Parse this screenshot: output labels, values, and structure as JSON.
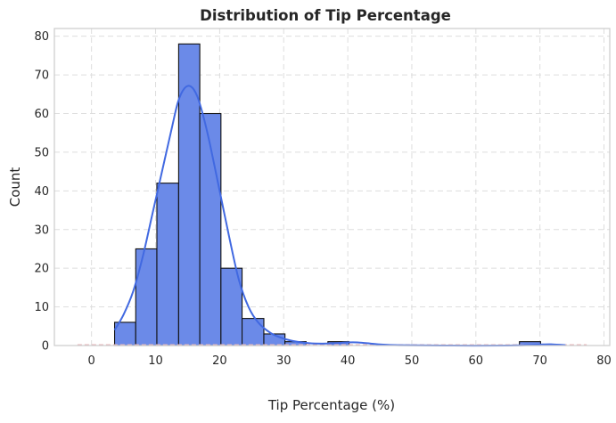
{
  "chart_data": {
    "type": "bar",
    "title": "Distribution of Tip Percentage",
    "xlabel": "Tip Percentage (%)",
    "ylabel": "Count",
    "xlim": [
      -5.8,
      80.9
    ],
    "ylim": [
      0,
      82
    ],
    "xticks": [
      0,
      10,
      20,
      30,
      40,
      50,
      60,
      70,
      80
    ],
    "yticks": [
      0,
      10,
      20,
      30,
      40,
      50,
      60,
      70,
      80
    ],
    "grid": true,
    "bin_edges": [
      3.6,
      6.9,
      10.2,
      13.6,
      16.9,
      20.2,
      23.5,
      26.9,
      30.2,
      33.5,
      36.9,
      40.2,
      43.5,
      46.8,
      50.2,
      53.5,
      56.8,
      60.1,
      63.5,
      66.8,
      70.1
    ],
    "counts": [
      6,
      25,
      42,
      78,
      60,
      20,
      7,
      3,
      1,
      0,
      1,
      0,
      0,
      0,
      0,
      0,
      0,
      0,
      0,
      1
    ],
    "kde": {
      "x": [
        3.6,
        5,
        6.5,
        8,
        9.5,
        11,
        12.5,
        13.5,
        14.5,
        15.5,
        16.5,
        17.5,
        18.5,
        20,
        21.5,
        23,
        24.5,
        26,
        28,
        30,
        32,
        34,
        36,
        38,
        40,
        41.5,
        43,
        45,
        48,
        55,
        65,
        70.5,
        72,
        74
      ],
      "y": [
        4,
        8,
        14,
        23,
        34,
        45,
        56,
        63,
        66.5,
        67,
        64.5,
        59,
        52,
        40,
        28,
        17,
        10,
        6,
        3.2,
        1.8,
        1.0,
        0.6,
        0.5,
        0.6,
        0.8,
        0.8,
        0.6,
        0.3,
        0.1,
        0,
        0,
        0.3,
        0.3,
        0.1
      ]
    },
    "baseline_range": [
      -2.2,
      77.3
    ],
    "colors": {
      "bar_fill": "#6b8ae8",
      "bar_edge": "#111111",
      "kde_line": "#4169e1",
      "baseline": "#e8b4b8",
      "grid": "#dddddd",
      "frame": "#cccccc"
    }
  }
}
